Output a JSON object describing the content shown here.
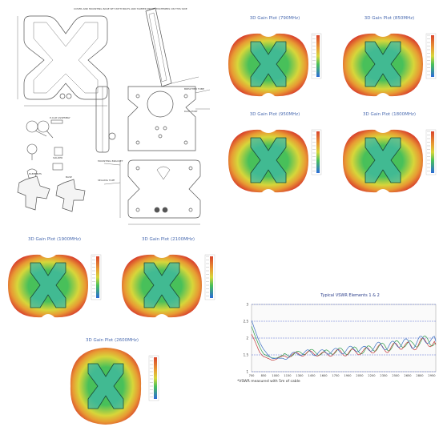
{
  "drawing": {
    "notes_top_left": "COVER AND MOUNTING BASE SET WITH BOLTS AND TAMPER PROOF FASTENERS ON THIS SIDE",
    "note_right_1": "BREATHER TUBE",
    "note_right_2": "DATA PORT",
    "note_clips": "P-CLIP ASSEMBLY",
    "note_bolt": "SOLDER",
    "note_mount": "MOUNTING BRACKET",
    "note_sealing": "SEALING TAPE",
    "note_elements": "ELEMENTS",
    "note_base": "BASE"
  },
  "gain_plots": [
    {
      "title": "3D Gain Plot (790MHz)"
    },
    {
      "title": "3D Gain Plot (850MHz)"
    },
    {
      "title": "3D Gain Plot (950MHz)"
    },
    {
      "title": "3D Gain Plot (1800MHz)"
    },
    {
      "title": "3D Gain Plot (1900MHz)"
    },
    {
      "title": "3D Gain Plot (2100MHz)"
    },
    {
      "title": "3D Gain Plot (2600MHz)"
    }
  ],
  "colors": {
    "outer_red": "#d9442c",
    "mid_orange": "#e89a33",
    "mid_yellow": "#d7d63a",
    "inner_green": "#48c05a",
    "x_shape": "#3fb8a6",
    "x_outline": "#1a4a3a",
    "title_blue": "#4a6bb0",
    "vswr_line_1": "#2e9a48",
    "vswr_line_2": "#c23a3a",
    "vswr_line_3": "#3a6ec2"
  },
  "vswr": {
    "title": "Typical VSWR Elements 1 & 2",
    "note": "*VSWR measured with 5m of cable",
    "y_ticks": [
      "3",
      "2.5",
      "2",
      "1.5",
      "1"
    ],
    "x_ticks": [
      "700",
      "850",
      "1000",
      "1150",
      "1300",
      "1450",
      "1600",
      "1750",
      "1900",
      "2050",
      "2200",
      "2350",
      "2500",
      "2650",
      "2800",
      "2950"
    ],
    "chart_data": {
      "type": "line",
      "title": "Typical VSWR Elements 1 & 2",
      "xlim": [
        700,
        3000
      ],
      "ylim": [
        1,
        3
      ],
      "x": [
        700,
        750,
        800,
        850,
        900,
        950,
        1000,
        1050,
        1100,
        1150,
        1200,
        1300,
        1400,
        1500,
        1600,
        1700,
        1800,
        1900,
        2000,
        2100,
        2200,
        2300,
        2400,
        2500,
        2600,
        2700,
        2800,
        2900,
        3000
      ],
      "series": [
        {
          "values": [
            2.35,
            2.0,
            1.75,
            1.55,
            1.45,
            1.4,
            1.42,
            1.45,
            1.48,
            1.5,
            1.52,
            1.55,
            1.6,
            1.58,
            1.55,
            1.6,
            1.62,
            1.6,
            1.65,
            1.62,
            1.7,
            1.75,
            1.72,
            1.8,
            1.85,
            1.78,
            1.9,
            1.95,
            1.85
          ]
        },
        {
          "values": [
            2.1,
            1.85,
            1.6,
            1.45,
            1.38,
            1.35,
            1.38,
            1.42,
            1.45,
            1.48,
            1.5,
            1.52,
            1.55,
            1.55,
            1.5,
            1.55,
            1.58,
            1.55,
            1.6,
            1.6,
            1.65,
            1.7,
            1.68,
            1.75,
            1.8,
            1.72,
            1.85,
            1.9,
            1.8
          ]
        },
        {
          "values": [
            2.5,
            2.2,
            1.9,
            1.65,
            1.5,
            1.42,
            1.4,
            1.38,
            1.4,
            1.45,
            1.5,
            1.55,
            1.58,
            1.55,
            1.58,
            1.62,
            1.6,
            1.65,
            1.7,
            1.65,
            1.72,
            1.78,
            1.75,
            1.82,
            1.88,
            1.8,
            1.92,
            1.98,
            1.9
          ]
        }
      ]
    }
  }
}
